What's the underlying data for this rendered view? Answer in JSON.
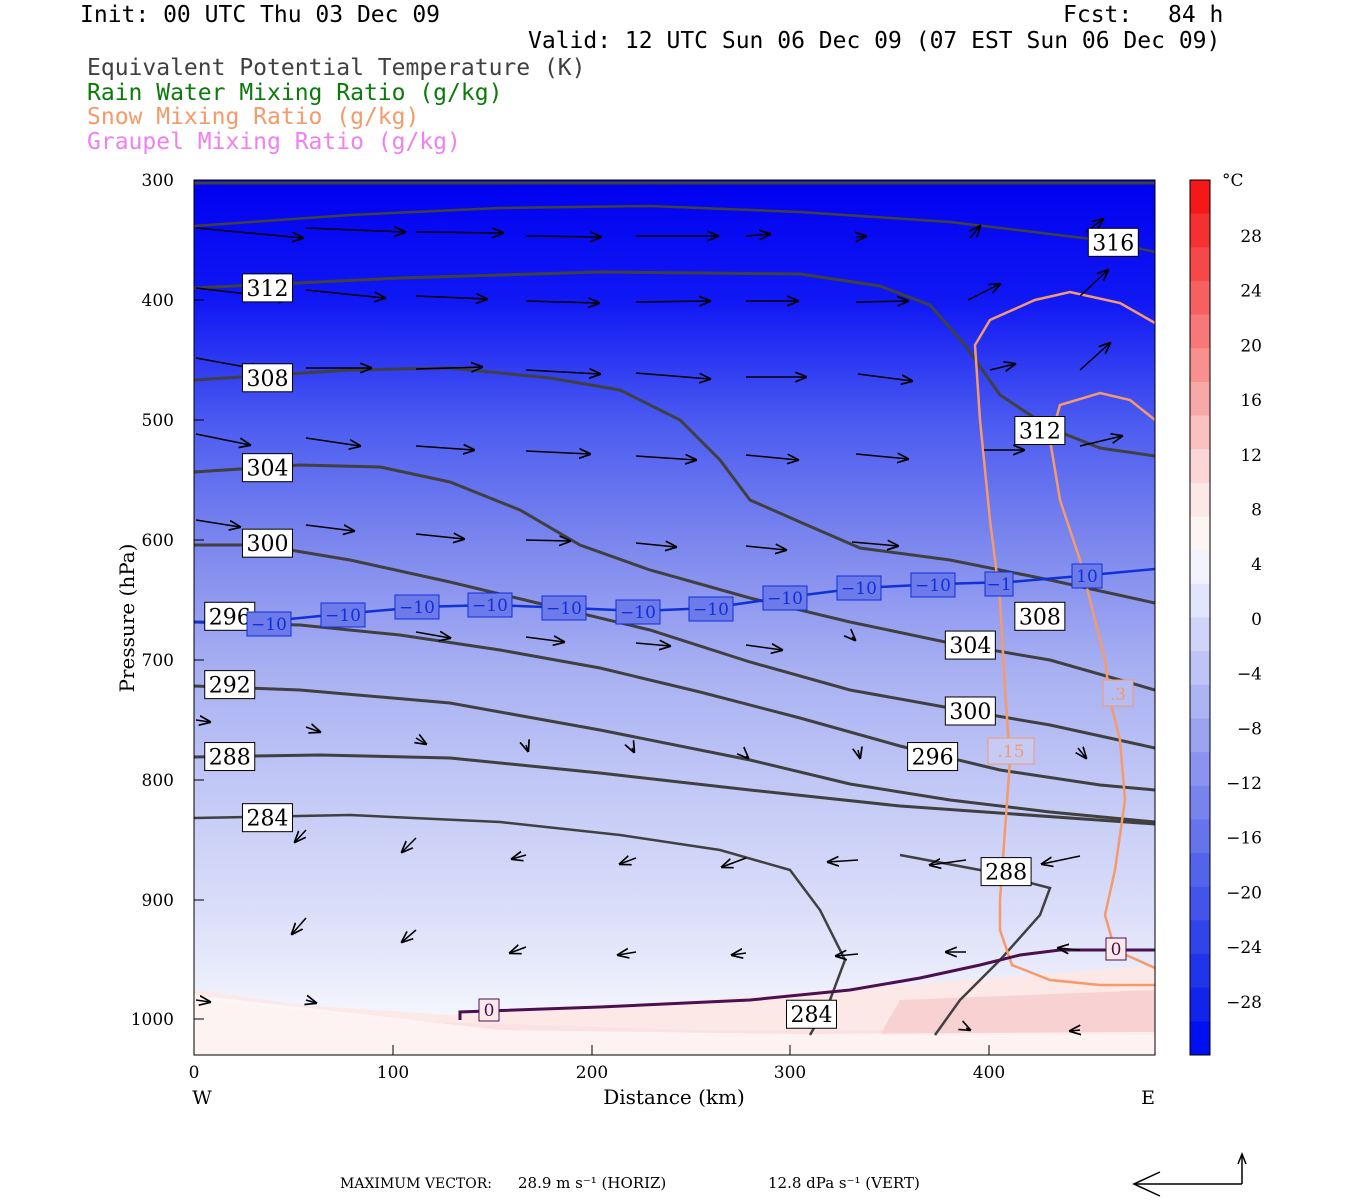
{
  "header": {
    "init": "Init: 00 UTC Thu 03 Dec 09",
    "fcst_label": "Fcst:",
    "fcst_value": "84 h",
    "valid": "Valid: 12 UTC Sun 06 Dec 09 (07 EST Sun 06 Dec 09)"
  },
  "legend": [
    {
      "label": "Equivalent Potential Temperature (K)",
      "color": "#404040"
    },
    {
      "label": "Rain Water Mixing Ratio (g/kg)",
      "color": "#0a7a0a"
    },
    {
      "label": "Snow Mixing Ratio (g/kg)",
      "color": "#f59a6a"
    },
    {
      "label": "Graupel Mixing Ratio (g/kg)",
      "color": "#f080f0"
    }
  ],
  "colorbar": {
    "unit": "°C",
    "ticks": [
      "28",
      "24",
      "20",
      "16",
      "12",
      "8",
      "4",
      "0",
      "−4",
      "−8",
      "−12",
      "−16",
      "−20",
      "−24",
      "−28"
    ]
  },
  "footer": {
    "max_vector_label": "MAXIMUM VECTOR:",
    "horiz": "28.9 m s⁻¹ (HORIZ)",
    "vert": "12.8 dPa s⁻¹ (VERT)"
  },
  "chart_data": {
    "type": "cross-section",
    "xlabel": "Distance (km)",
    "ylabel": "Pressure (hPa)",
    "x_ticks": [
      "0",
      "100",
      "200",
      "300",
      "400"
    ],
    "y_ticks": [
      "300",
      "400",
      "500",
      "600",
      "700",
      "800",
      "900",
      "1000"
    ],
    "x_left_label": "W",
    "x_right_label": "E",
    "xlim": [
      0,
      484
    ],
    "ylim": [
      1030,
      300
    ],
    "theta_e_labels": [
      {
        "text": "312",
        "x": 37,
        "p": 390
      },
      {
        "text": "308",
        "x": 37,
        "p": 465
      },
      {
        "text": "304",
        "x": 37,
        "p": 540
      },
      {
        "text": "300",
        "x": 37,
        "p": 603
      },
      {
        "text": "296",
        "x": 18,
        "p": 664
      },
      {
        "text": "292",
        "x": 18,
        "p": 721
      },
      {
        "text": "288",
        "x": 18,
        "p": 781
      },
      {
        "text": "284",
        "x": 37,
        "p": 832
      },
      {
        "text": "316",
        "x": 463,
        "p": 352
      },
      {
        "text": "312",
        "x": 426,
        "p": 509
      },
      {
        "text": "308",
        "x": 426,
        "p": 664
      },
      {
        "text": "304",
        "x": 391,
        "p": 688
      },
      {
        "text": "300",
        "x": 391,
        "p": 743
      },
      {
        "text": "296",
        "x": 372,
        "p": 781
      },
      {
        "text": "288",
        "x": 409,
        "p": 877
      },
      {
        "text": "284",
        "x": 311,
        "p": 996
      }
    ],
    "temp_minus10_labels": [
      "−10",
      "−10",
      "−10",
      "−10",
      "−10",
      "−10",
      "−10",
      "−10",
      "−10",
      "−10",
      "−10",
      "−1",
      "10"
    ],
    "temp_zero_labels": [
      "0",
      "0"
    ],
    "snow_labels": [
      ".15",
      ".3"
    ]
  }
}
